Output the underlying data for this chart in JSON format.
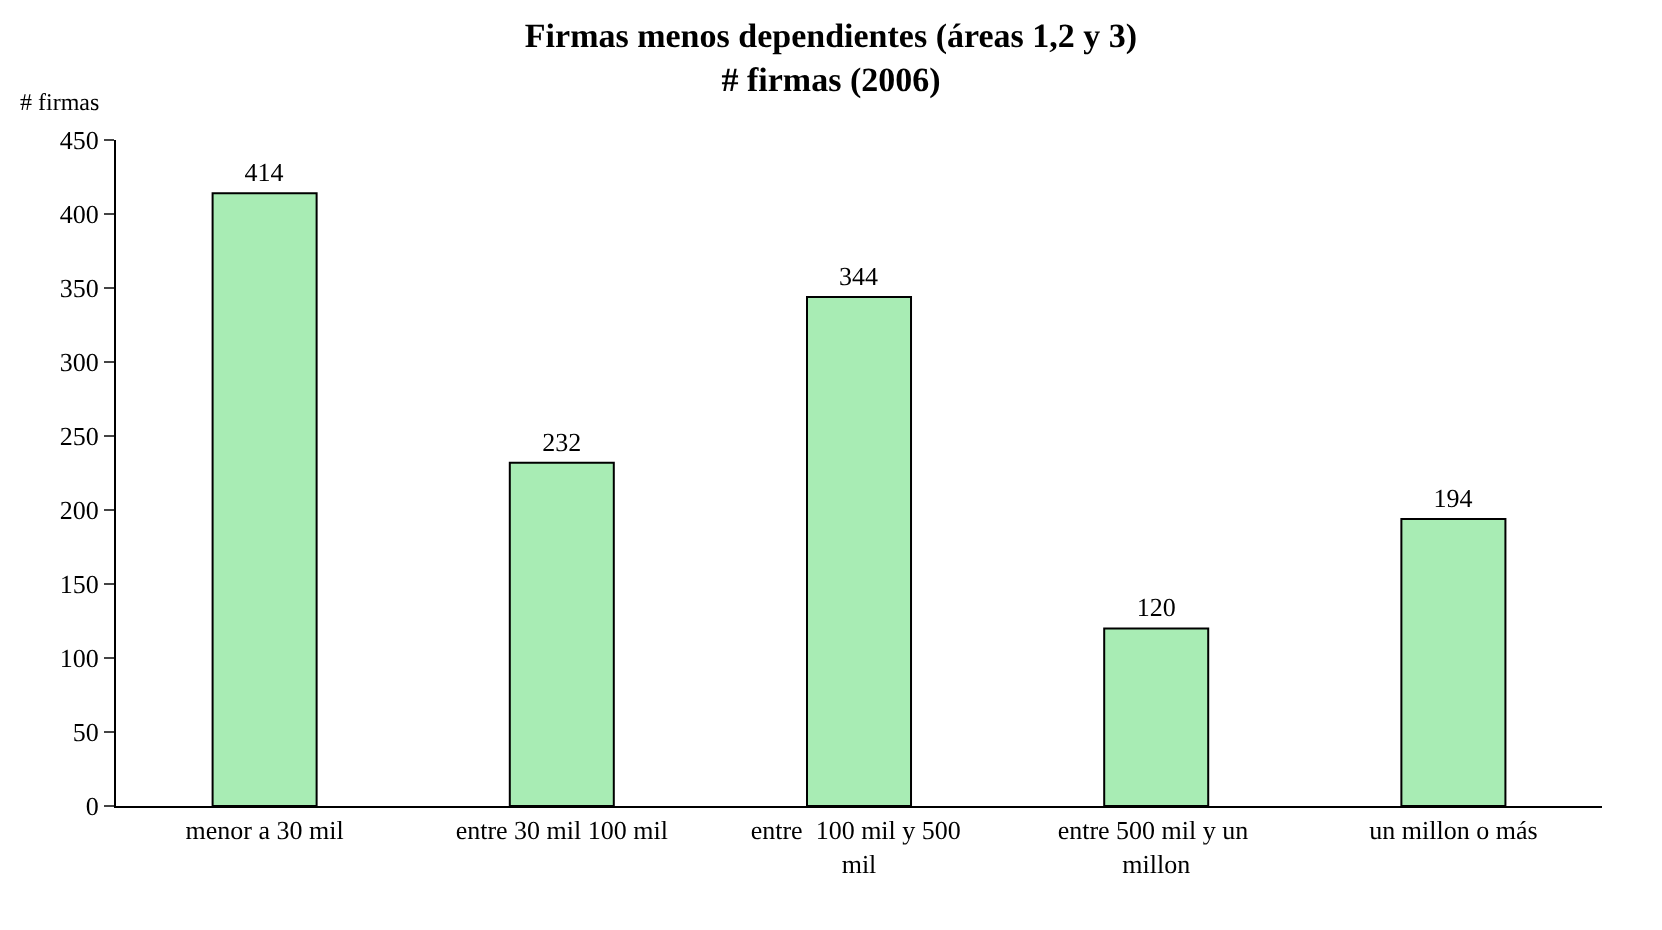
{
  "chart_data": {
    "type": "bar",
    "title": "Firmas menos dependientes (áreas 1,2 y 3)",
    "subtitle": "# firmas (2006)",
    "ylabel": "# firmas",
    "categories": [
      "menor a 30 mil",
      "entre 30 mil 100 mil",
      "entre  100 mil y 500 mil",
      "entre 500 mil y un millon",
      "un millon o más"
    ],
    "values": [
      414,
      232,
      344,
      120,
      194
    ],
    "color": "#a8ecb4",
    "ylim": [
      0,
      450
    ],
    "yticks": [
      0,
      50,
      100,
      150,
      200,
      250,
      300,
      350,
      400,
      450
    ],
    "data_labels": true
  }
}
